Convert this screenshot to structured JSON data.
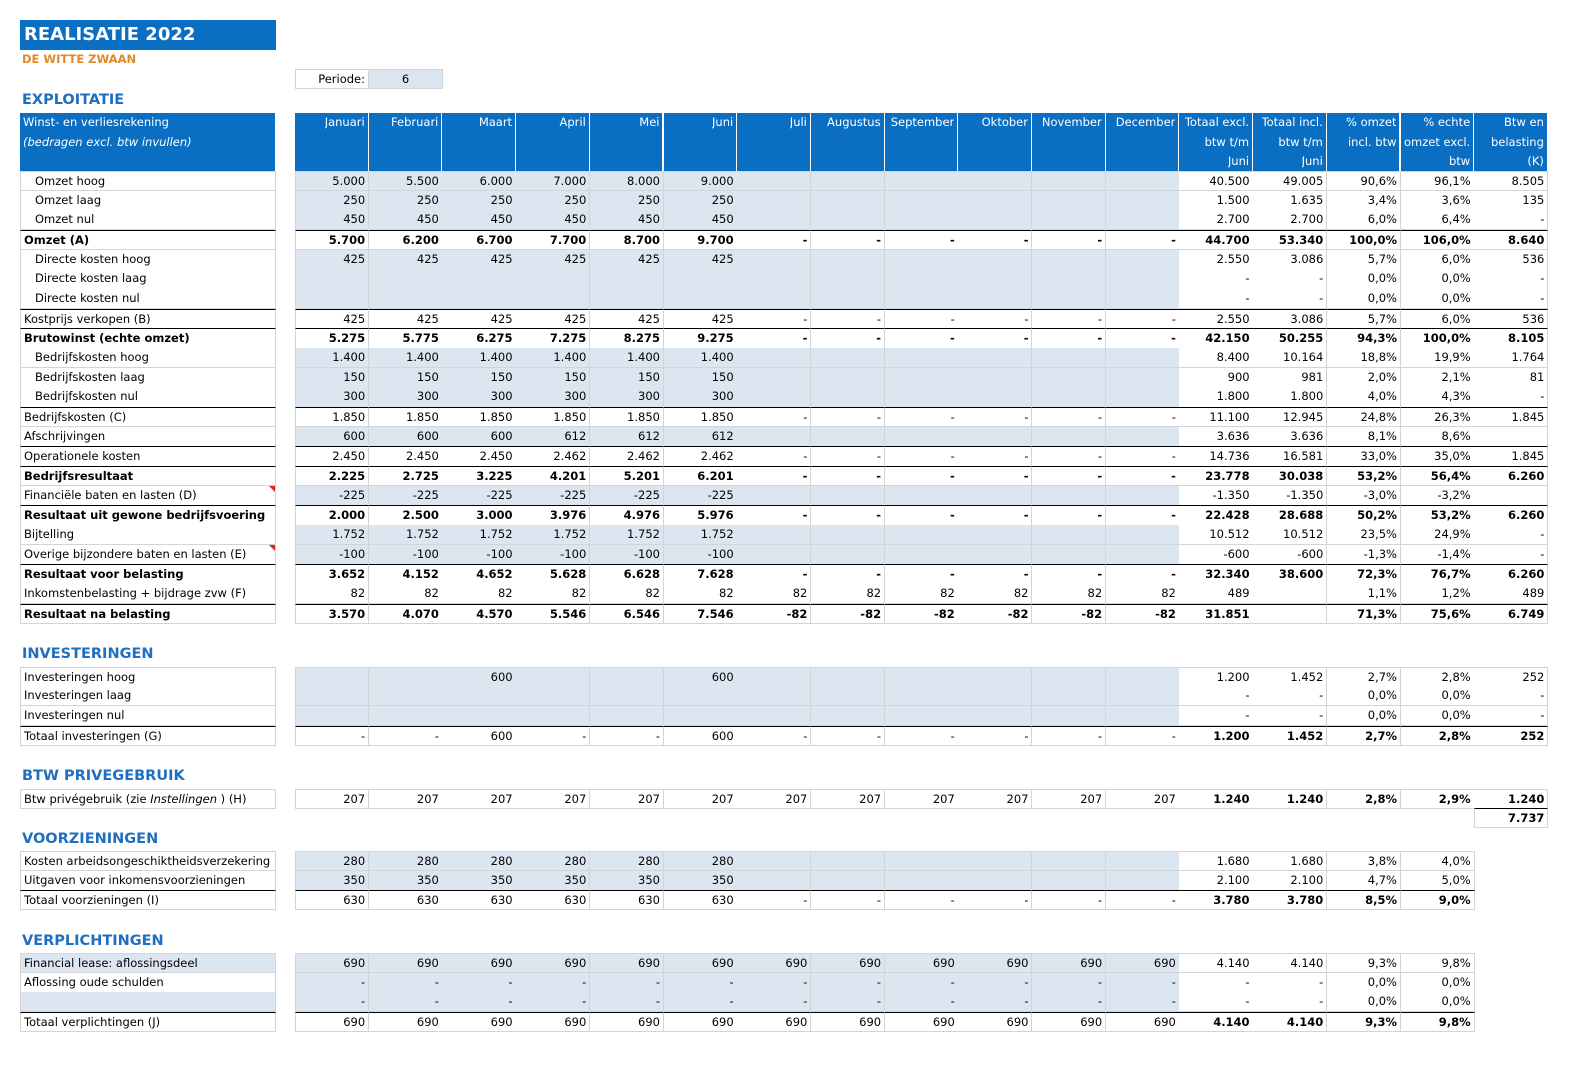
{
  "title": "REALISATIE 2022",
  "company": "DE WITTE ZWAAN",
  "period": {
    "label": "Periode:",
    "value": "6"
  },
  "columns": [
    [
      "Januari"
    ],
    [
      "Februari"
    ],
    [
      "Maart"
    ],
    [
      "April"
    ],
    [
      "Mei"
    ],
    [
      "Juni"
    ],
    [
      "Juli"
    ],
    [
      "Augustus"
    ],
    [
      "September"
    ],
    [
      "Oktober"
    ],
    [
      "November"
    ],
    [
      "December"
    ],
    [
      "Totaal excl.",
      "btw t/m",
      "Juni"
    ],
    [
      "Totaal incl.",
      "btw t/m",
      "Juni"
    ],
    [
      "% omzet",
      "incl. btw"
    ],
    [
      "% echte",
      "omzet excl.",
      "btw"
    ],
    [
      "Btw en",
      "belasting",
      "(K)"
    ]
  ],
  "sections": [
    {
      "title": "EXPLOITATIE",
      "header": [
        "Winst- en verliesrekening",
        "(bedragen excl. btw invullen)"
      ],
      "rows": [
        {
          "label": "Omzet hoog",
          "indent": true,
          "shaded": true,
          "cells": [
            "5.000",
            "5.500",
            "6.000",
            "7.000",
            "8.000",
            "9.000",
            null,
            null,
            null,
            null,
            null,
            null,
            "40.500",
            "49.005",
            "90,6%",
            "96,1%",
            "8.505"
          ]
        },
        {
          "label": "Omzet laag",
          "indent": true,
          "shaded": true,
          "cells": [
            "250",
            "250",
            "250",
            "250",
            "250",
            "250",
            null,
            null,
            null,
            null,
            null,
            null,
            "1.500",
            "1.635",
            "3,4%",
            "3,6%",
            "135"
          ]
        },
        {
          "label": "Omzet nul",
          "indent": true,
          "shaded": true,
          "cells": [
            "450",
            "450",
            "450",
            "450",
            "450",
            "450",
            null,
            null,
            null,
            null,
            null,
            null,
            "2.700",
            "2.700",
            "6,0%",
            "6,4%",
            "-"
          ]
        },
        {
          "label": "Omzet (A)",
          "bold": true,
          "topline": true,
          "cells": [
            "5.700",
            "6.200",
            "6.700",
            "7.700",
            "8.700",
            "9.700",
            "-",
            "-",
            "-",
            "-",
            "-",
            "-",
            "44.700",
            "53.340",
            "100,0%",
            "106,0%",
            "8.640"
          ]
        },
        {
          "label": "Directe kosten hoog",
          "indent": true,
          "shaded": true,
          "cells": [
            "425",
            "425",
            "425",
            "425",
            "425",
            "425",
            null,
            null,
            null,
            null,
            null,
            null,
            "2.550",
            "3.086",
            "5,7%",
            "6,0%",
            "536"
          ]
        },
        {
          "label": "Directe kosten laag",
          "indent": true,
          "shaded": true,
          "cells": [
            null,
            null,
            null,
            null,
            null,
            null,
            null,
            null,
            null,
            null,
            null,
            null,
            "-",
            "-",
            "0,0%",
            "0,0%",
            "-"
          ]
        },
        {
          "label": "Directe kosten nul",
          "indent": true,
          "shaded": true,
          "cells": [
            null,
            null,
            null,
            null,
            null,
            null,
            null,
            null,
            null,
            null,
            null,
            null,
            "-",
            "-",
            "0,0%",
            "0,0%",
            "-"
          ]
        },
        {
          "label": "Kostprijs verkopen (B)",
          "topline": true,
          "cells": [
            "425",
            "425",
            "425",
            "425",
            "425",
            "425",
            "-",
            "-",
            "-",
            "-",
            "-",
            "-",
            "2.550",
            "3.086",
            "5,7%",
            "6,0%",
            "536"
          ]
        },
        {
          "label": "Brutowinst (echte omzet)",
          "bold": true,
          "topline": true,
          "cells": [
            "5.275",
            "5.775",
            "6.275",
            "7.275",
            "8.275",
            "9.275",
            "-",
            "-",
            "-",
            "-",
            "-",
            "-",
            "42.150",
            "50.255",
            "94,3%",
            "100,0%",
            "8.105"
          ]
        },
        {
          "label": "Bedrijfskosten hoog",
          "indent": true,
          "shaded": true,
          "cells": [
            "1.400",
            "1.400",
            "1.400",
            "1.400",
            "1.400",
            "1.400",
            null,
            null,
            null,
            null,
            null,
            null,
            "8.400",
            "10.164",
            "18,8%",
            "19,9%",
            "1.764"
          ]
        },
        {
          "label": "Bedrijfskosten laag",
          "indent": true,
          "shaded": true,
          "cells": [
            "150",
            "150",
            "150",
            "150",
            "150",
            "150",
            null,
            null,
            null,
            null,
            null,
            null,
            "900",
            "981",
            "2,0%",
            "2,1%",
            "81"
          ]
        },
        {
          "label": "Bedrijfskosten nul",
          "indent": true,
          "shaded": true,
          "cells": [
            "300",
            "300",
            "300",
            "300",
            "300",
            "300",
            null,
            null,
            null,
            null,
            null,
            null,
            "1.800",
            "1.800",
            "4,0%",
            "4,3%",
            "-"
          ]
        },
        {
          "label": "Bedrijfskosten (C)",
          "topline": true,
          "cells": [
            "1.850",
            "1.850",
            "1.850",
            "1.850",
            "1.850",
            "1.850",
            "-",
            "-",
            "-",
            "-",
            "-",
            "-",
            "11.100",
            "12.945",
            "24,8%",
            "26,3%",
            "1.845"
          ]
        },
        {
          "label": "Afschrijvingen",
          "shaded": true,
          "cells": [
            "600",
            "600",
            "600",
            "612",
            "612",
            "612",
            null,
            null,
            null,
            null,
            null,
            null,
            "3.636",
            "3.636",
            "8,1%",
            "8,6%",
            null
          ]
        },
        {
          "label": "Operationele kosten",
          "topline": true,
          "cells": [
            "2.450",
            "2.450",
            "2.450",
            "2.462",
            "2.462",
            "2.462",
            "-",
            "-",
            "-",
            "-",
            "-",
            "-",
            "14.736",
            "16.581",
            "33,0%",
            "35,0%",
            "1.845"
          ]
        },
        {
          "label": "Bedrijfsresultaat",
          "bold": true,
          "topline": true,
          "cells": [
            "2.225",
            "2.725",
            "3.225",
            "4.201",
            "5.201",
            "6.201",
            "-",
            "-",
            "-",
            "-",
            "-",
            "-",
            "23.778",
            "30.038",
            "53,2%",
            "56,4%",
            "6.260"
          ]
        },
        {
          "label": "Financiële baten en lasten (D)",
          "shaded": true,
          "note": true,
          "cells": [
            "-225",
            "-225",
            "-225",
            "-225",
            "-225",
            "-225",
            null,
            null,
            null,
            null,
            null,
            null,
            "-1.350",
            "-1.350",
            "-3,0%",
            "-3,2%",
            null
          ]
        },
        {
          "label": "Resultaat uit gewone bedrijfsvoering",
          "bold": true,
          "topline": true,
          "cells": [
            "2.000",
            "2.500",
            "3.000",
            "3.976",
            "4.976",
            "5.976",
            "-",
            "-",
            "-",
            "-",
            "-",
            "-",
            "22.428",
            "28.688",
            "50,2%",
            "53,2%",
            "6.260"
          ]
        },
        {
          "label": "Bijtelling",
          "shaded": true,
          "cells": [
            "1.752",
            "1.752",
            "1.752",
            "1.752",
            "1.752",
            "1.752",
            null,
            null,
            null,
            null,
            null,
            null,
            "10.512",
            "10.512",
            "23,5%",
            "24,9%",
            "-"
          ]
        },
        {
          "label": "Overige bijzondere baten en lasten (E)",
          "shaded": true,
          "note": true,
          "cells": [
            "-100",
            "-100",
            "-100",
            "-100",
            "-100",
            "-100",
            null,
            null,
            null,
            null,
            null,
            null,
            "-600",
            "-600",
            "-1,3%",
            "-1,4%",
            "-"
          ]
        },
        {
          "label": "Resultaat voor belasting",
          "bold": true,
          "topline": true,
          "cells": [
            "3.652",
            "4.152",
            "4.652",
            "5.628",
            "6.628",
            "7.628",
            "-",
            "-",
            "-",
            "-",
            "-",
            "-",
            "32.340",
            "38.600",
            "72,3%",
            "76,7%",
            "6.260"
          ]
        },
        {
          "label": "Inkomstenbelasting + bijdrage zvw (F)",
          "cells": [
            "82",
            "82",
            "82",
            "82",
            "82",
            "82",
            "82",
            "82",
            "82",
            "82",
            "82",
            "82",
            "489",
            null,
            "1,1%",
            "1,2%",
            "489"
          ]
        },
        {
          "label": "Resultaat na belasting",
          "bold": true,
          "topline": true,
          "cells": [
            "3.570",
            "4.070",
            "4.570",
            "5.546",
            "6.546",
            "7.546",
            "-82",
            "-82",
            "-82",
            "-82",
            "-82",
            "-82",
            "31.851",
            null,
            "71,3%",
            "75,6%",
            "6.749"
          ]
        }
      ]
    },
    {
      "title": "INVESTERINGEN",
      "rows": [
        {
          "label": "Investeringen hoog",
          "shaded": true,
          "cells": [
            null,
            null,
            "600",
            null,
            null,
            "600",
            null,
            null,
            null,
            null,
            null,
            null,
            "1.200",
            "1.452",
            "2,7%",
            "2,8%",
            "252"
          ]
        },
        {
          "label": "Investeringen laag",
          "shaded": true,
          "cells": [
            null,
            null,
            null,
            null,
            null,
            null,
            null,
            null,
            null,
            null,
            null,
            null,
            "-",
            "-",
            "0,0%",
            "0,0%",
            "-"
          ]
        },
        {
          "label": "Investeringen nul",
          "shaded": true,
          "cells": [
            null,
            null,
            null,
            null,
            null,
            null,
            null,
            null,
            null,
            null,
            null,
            null,
            "-",
            "-",
            "0,0%",
            "0,0%",
            "-"
          ]
        },
        {
          "label": "Totaal investeringen (G)",
          "topline": true,
          "bold_totals": true,
          "cells": [
            "-",
            "-",
            "600",
            "-",
            "-",
            "600",
            "-",
            "-",
            "-",
            "-",
            "-",
            "-",
            "1.200",
            "1.452",
            "2,7%",
            "2,8%",
            "252"
          ]
        }
      ]
    },
    {
      "title": "BTW PRIVEGEBRUIK",
      "grand_total": "7.737",
      "rows": [
        {
          "label_parts": [
            "Btw privégebruik (zie ",
            "Instellingen",
            " ) (H)"
          ],
          "bold_totals": true,
          "cells": [
            "207",
            "207",
            "207",
            "207",
            "207",
            "207",
            "207",
            "207",
            "207",
            "207",
            "207",
            "207",
            "1.240",
            "1.240",
            "2,8%",
            "2,9%",
            "1.240"
          ]
        }
      ]
    },
    {
      "title": "VOORZIENINGEN",
      "rows": [
        {
          "label": "Kosten arbeidsongeschiktheidsverzekering",
          "shaded": true,
          "cells": [
            "280",
            "280",
            "280",
            "280",
            "280",
            "280",
            null,
            null,
            null,
            null,
            null,
            null,
            "1.680",
            "1.680",
            "3,8%",
            "4,0%"
          ]
        },
        {
          "label": "Uitgaven voor inkomensvoorzieningen",
          "shaded": true,
          "cells": [
            "350",
            "350",
            "350",
            "350",
            "350",
            "350",
            null,
            null,
            null,
            null,
            null,
            null,
            "2.100",
            "2.100",
            "4,7%",
            "5,0%"
          ]
        },
        {
          "label": "Totaal voorzieningen (I)",
          "topline": true,
          "bold_totals": true,
          "cells": [
            "630",
            "630",
            "630",
            "630",
            "630",
            "630",
            "-",
            "-",
            "-",
            "-",
            "-",
            "-",
            "3.780",
            "3.780",
            "8,5%",
            "9,0%"
          ]
        }
      ]
    },
    {
      "title": "VERPLICHTINGEN",
      "rows": [
        {
          "label": "Financial lease: aflossingsdeel",
          "shaded": true,
          "label_shaded": true,
          "cells": [
            "690",
            "690",
            "690",
            "690",
            "690",
            "690",
            "690",
            "690",
            "690",
            "690",
            "690",
            "690",
            "4.140",
            "4.140",
            "9,3%",
            "9,8%"
          ]
        },
        {
          "label": "Aflossing oude schulden",
          "shaded": true,
          "cells": [
            "-",
            "-",
            "-",
            "-",
            "-",
            "-",
            "-",
            "-",
            "-",
            "-",
            "-",
            "-",
            "-",
            "-",
            "0,0%",
            "0,0%"
          ]
        },
        {
          "label": null,
          "shaded": true,
          "label_shaded": true,
          "cells": [
            "-",
            "-",
            "-",
            "-",
            "-",
            "-",
            "-",
            "-",
            "-",
            "-",
            "-",
            "-",
            "-",
            "-",
            "0,0%",
            "0,0%"
          ]
        },
        {
          "label": "Totaal verplichtingen (J)",
          "topline": true,
          "bold_totals": true,
          "cells": [
            "690",
            "690",
            "690",
            "690",
            "690",
            "690",
            "690",
            "690",
            "690",
            "690",
            "690",
            "690",
            "4.140",
            "4.140",
            "9,3%",
            "9,8%"
          ]
        }
      ]
    }
  ]
}
